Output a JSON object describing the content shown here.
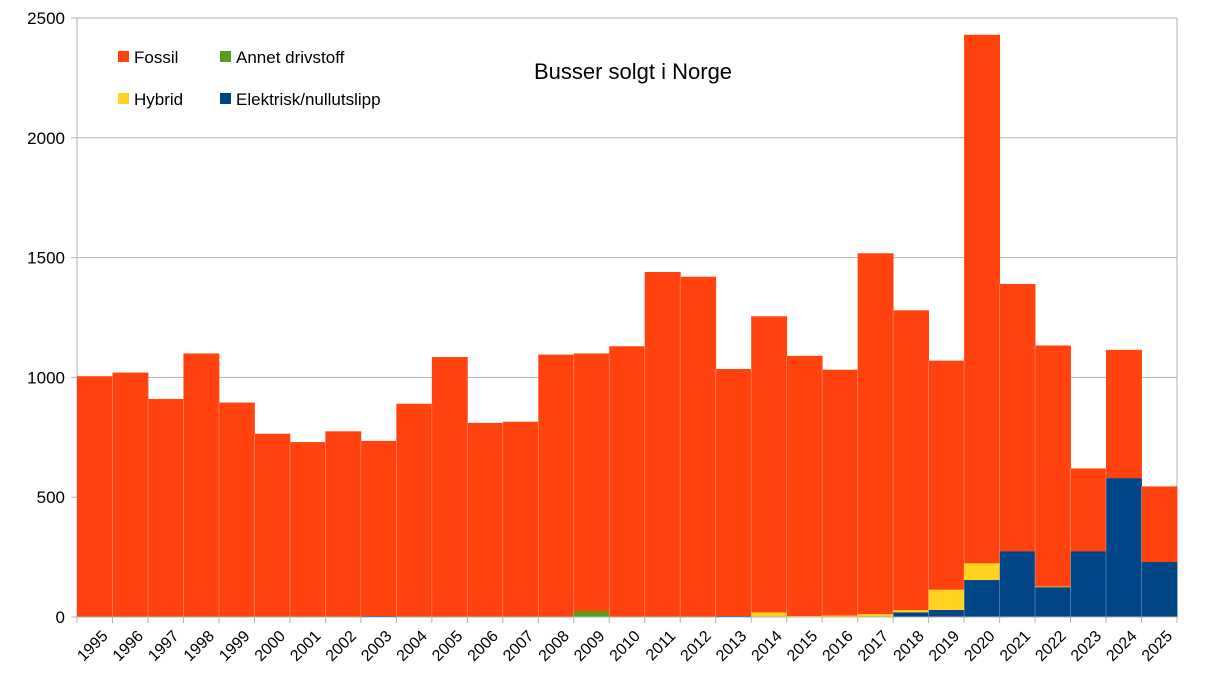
{
  "chart_data": {
    "type": "bar",
    "stacked": true,
    "title": "Busser solgt i Norge",
    "xlabel": "",
    "ylabel": "",
    "ylim": [
      0,
      2500
    ],
    "yticks": [
      0,
      500,
      1000,
      1500,
      2000,
      2500
    ],
    "grid": true,
    "legend_position": "top-left",
    "categories": [
      "1995",
      "1996",
      "1997",
      "1998",
      "1999",
      "2000",
      "2001",
      "2002",
      "2003",
      "2004",
      "2005",
      "2006",
      "2007",
      "2008",
      "2009",
      "2010",
      "2011",
      "2012",
      "2013",
      "2014",
      "2015",
      "2016",
      "2017",
      "2018",
      "2019",
      "2020",
      "2021",
      "2022",
      "2023",
      "2024",
      "2025"
    ],
    "series": [
      {
        "name": "Elektrisk/nullutslipp",
        "color": "#004586",
        "values": [
          0,
          0,
          0,
          0,
          0,
          0,
          0,
          0,
          5,
          0,
          0,
          0,
          0,
          0,
          0,
          0,
          0,
          0,
          5,
          0,
          0,
          2,
          3,
          20,
          30,
          155,
          275,
          125,
          275,
          580,
          230
        ]
      },
      {
        "name": "Hybrid",
        "color": "#ffd320",
        "values": [
          0,
          0,
          0,
          0,
          0,
          0,
          0,
          0,
          0,
          0,
          0,
          0,
          0,
          0,
          0,
          0,
          0,
          0,
          0,
          20,
          5,
          5,
          10,
          10,
          85,
          70,
          0,
          3,
          0,
          0,
          0
        ]
      },
      {
        "name": "Annet drivstoff",
        "color": "#579d1c",
        "values": [
          0,
          0,
          0,
          0,
          0,
          0,
          0,
          0,
          0,
          0,
          0,
          0,
          0,
          0,
          25,
          0,
          0,
          0,
          0,
          0,
          0,
          0,
          0,
          0,
          0,
          0,
          0,
          0,
          0,
          0,
          0
        ]
      },
      {
        "name": "Fossil",
        "color": "#ff420e",
        "values": [
          1005,
          1020,
          910,
          1100,
          895,
          765,
          730,
          775,
          730,
          890,
          1085,
          810,
          815,
          1095,
          1075,
          1130,
          1440,
          1420,
          1030,
          1235,
          1085,
          1025,
          1505,
          1250,
          955,
          2205,
          1115,
          1005,
          345,
          535,
          315
        ]
      }
    ],
    "legend": [
      {
        "name": "Fossil",
        "color": "#ff420e"
      },
      {
        "name": "Annet drivstoff",
        "color": "#579d1c"
      },
      {
        "name": "Hybrid",
        "color": "#ffd320"
      },
      {
        "name": "Elektrisk/nullutslipp",
        "color": "#004586"
      }
    ]
  }
}
